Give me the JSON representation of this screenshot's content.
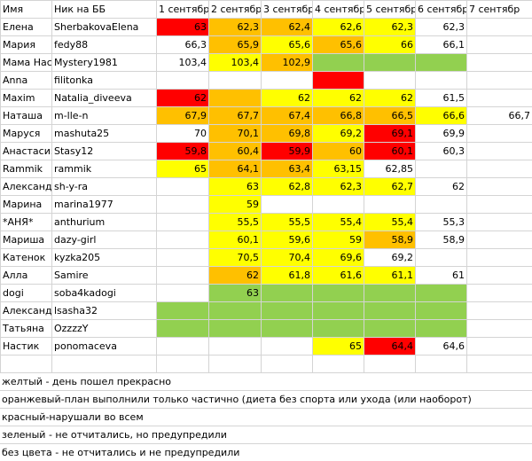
{
  "colors": {
    "yellow": "#ffff00",
    "orange": "#ffc000",
    "red": "#ff0000",
    "green": "#92d050",
    "none": "#ffffff",
    "gridline": "#d4d4d4"
  },
  "header": [
    "Имя",
    "Ник на ББ",
    "1 сентябр",
    "2 сентябр",
    "3 сентябр",
    "4 сентябр",
    "5 сентябр",
    "6 сентябр",
    "7 сентябр"
  ],
  "rows": [
    {
      "name": "Елена",
      "nick": "SherbakovaElena",
      "cells": [
        [
          "63",
          "red"
        ],
        [
          "62,3",
          "orange"
        ],
        [
          "62,4",
          "orange"
        ],
        [
          "62,6",
          "yellow"
        ],
        [
          "62,3",
          "yellow"
        ],
        [
          "62,3",
          "none"
        ],
        [
          "",
          ""
        ]
      ]
    },
    {
      "name": "Мария",
      "nick": "fedy88",
      "cells": [
        [
          "66,3",
          "none"
        ],
        [
          "65,9",
          "orange"
        ],
        [
          "65,6",
          "yellow"
        ],
        [
          "65,6",
          "orange"
        ],
        [
          "66",
          "yellow"
        ],
        [
          "66,1",
          "none"
        ],
        [
          "",
          ""
        ]
      ]
    },
    {
      "name": "Мама Нас",
      "nick": "Mystery1981",
      "cells": [
        [
          "103,4",
          "none"
        ],
        [
          "103,4",
          "yellow"
        ],
        [
          "102,9",
          "orange"
        ],
        [
          "",
          "green"
        ],
        [
          "",
          "green"
        ],
        [
          "",
          "green"
        ],
        [
          "",
          ""
        ]
      ]
    },
    {
      "name": "Anna",
      "nick": "filitonka",
      "cells": [
        [
          "",
          "none"
        ],
        [
          "",
          "none"
        ],
        [
          "",
          "none"
        ],
        [
          "",
          "red"
        ],
        [
          "",
          "none"
        ],
        [
          "",
          "none"
        ],
        [
          "",
          ""
        ]
      ]
    },
    {
      "name": "Maxim",
      "nick": "Natalia_diveeva",
      "cells": [
        [
          "62",
          "red"
        ],
        [
          "",
          "orange"
        ],
        [
          "62",
          "yellow"
        ],
        [
          "62",
          "yellow"
        ],
        [
          "62",
          "yellow"
        ],
        [
          "61,5",
          "none"
        ],
        [
          "",
          ""
        ]
      ]
    },
    {
      "name": "Наташа",
      "nick": "m-lle-n",
      "cells": [
        [
          "67,9",
          "orange"
        ],
        [
          "67,7",
          "orange"
        ],
        [
          "67,4",
          "orange"
        ],
        [
          "66,8",
          "orange"
        ],
        [
          "66,5",
          "orange"
        ],
        [
          "66,6",
          "yellow"
        ],
        [
          "66,7",
          "none"
        ]
      ]
    },
    {
      "name": "Маруся",
      "nick": "mashuta25",
      "cells": [
        [
          "70",
          "none"
        ],
        [
          "70,1",
          "orange"
        ],
        [
          "69,8",
          "orange"
        ],
        [
          "69,2",
          "yellow"
        ],
        [
          "69,1",
          "red"
        ],
        [
          "69,9",
          "none"
        ],
        [
          "",
          ""
        ]
      ]
    },
    {
      "name": "Анастасия",
      "nick": "Stasy12",
      "cells": [
        [
          "59,8",
          "red"
        ],
        [
          "60,4",
          "orange"
        ],
        [
          "59,9",
          "red"
        ],
        [
          "60",
          "orange"
        ],
        [
          "60,1",
          "red"
        ],
        [
          "60,3",
          "none"
        ],
        [
          "",
          ""
        ]
      ]
    },
    {
      "name": "Rammik",
      "nick": "rammik",
      "cells": [
        [
          "65",
          "yellow"
        ],
        [
          "64,1",
          "orange"
        ],
        [
          "63,4",
          "orange"
        ],
        [
          "63,15",
          "yellow"
        ],
        [
          "62,85",
          "none"
        ],
        [
          "",
          "none"
        ],
        [
          "",
          ""
        ]
      ]
    },
    {
      "name": "Александ",
      "nick": "sh-y-ra",
      "cells": [
        [
          "",
          "none"
        ],
        [
          "63",
          "yellow"
        ],
        [
          "62,8",
          "yellow"
        ],
        [
          "62,3",
          "yellow"
        ],
        [
          "62,7",
          "yellow"
        ],
        [
          "62",
          "none"
        ],
        [
          "",
          ""
        ]
      ]
    },
    {
      "name": "Марина",
      "nick": "marina1977",
      "cells": [
        [
          "",
          "none"
        ],
        [
          "59",
          "yellow"
        ],
        [
          "",
          "none"
        ],
        [
          "",
          "none"
        ],
        [
          "",
          "none"
        ],
        [
          "",
          "none"
        ],
        [
          "",
          ""
        ]
      ]
    },
    {
      "name": "*АНЯ*",
      "nick": "anthurium",
      "cells": [
        [
          "",
          "none"
        ],
        [
          "55,5",
          "yellow"
        ],
        [
          "55,5",
          "yellow"
        ],
        [
          "55,4",
          "yellow"
        ],
        [
          "55,4",
          "yellow"
        ],
        [
          "55,3",
          "none"
        ],
        [
          "",
          ""
        ]
      ]
    },
    {
      "name": "Мариша",
      "nick": "dazy-girl",
      "cells": [
        [
          "",
          "none"
        ],
        [
          "60,1",
          "yellow"
        ],
        [
          "59,6",
          "yellow"
        ],
        [
          "59",
          "yellow"
        ],
        [
          "58,9",
          "orange"
        ],
        [
          "58,9",
          "none"
        ],
        [
          "",
          ""
        ]
      ]
    },
    {
      "name": "Катенок",
      "nick": "kyzka205",
      "cells": [
        [
          "",
          "none"
        ],
        [
          "70,5",
          "yellow"
        ],
        [
          "70,4",
          "yellow"
        ],
        [
          "69,6",
          "yellow"
        ],
        [
          "69,2",
          "none"
        ],
        [
          "",
          "none"
        ],
        [
          "",
          ""
        ]
      ]
    },
    {
      "name": "Алла",
      "nick": "Samire",
      "cells": [
        [
          "",
          "none"
        ],
        [
          "62",
          "orange"
        ],
        [
          "61,8",
          "yellow"
        ],
        [
          "61,6",
          "yellow"
        ],
        [
          "61,1",
          "yellow"
        ],
        [
          "61",
          "none"
        ],
        [
          "",
          ""
        ]
      ]
    },
    {
      "name": "dogi",
      "nick": "soba4kadogi",
      "cells": [
        [
          "",
          "none"
        ],
        [
          "63",
          "green"
        ],
        [
          "",
          "green"
        ],
        [
          "",
          "green"
        ],
        [
          "",
          "green"
        ],
        [
          "",
          "green"
        ],
        [
          "",
          ""
        ]
      ]
    },
    {
      "name": "Александ",
      "nick": "lsasha32",
      "cells": [
        [
          "",
          "green"
        ],
        [
          "",
          "green"
        ],
        [
          "",
          "green"
        ],
        [
          "",
          "green"
        ],
        [
          "",
          "green"
        ],
        [
          "",
          "green"
        ],
        [
          "",
          ""
        ]
      ]
    },
    {
      "name": "Татьяна",
      "nick": "OzzzzY",
      "cells": [
        [
          "",
          "green"
        ],
        [
          "",
          "green"
        ],
        [
          "",
          "green"
        ],
        [
          "",
          "green"
        ],
        [
          "",
          "green"
        ],
        [
          "",
          "green"
        ],
        [
          "",
          ""
        ]
      ]
    },
    {
      "name": "Настик",
      "nick": "ponomaceva",
      "cells": [
        [
          "",
          "none"
        ],
        [
          "",
          "none"
        ],
        [
          "",
          "none"
        ],
        [
          "65",
          "yellow"
        ],
        [
          "64,4",
          "red"
        ],
        [
          "64,6",
          "none"
        ],
        [
          "",
          ""
        ]
      ]
    }
  ],
  "legend": [
    "желтый - день пошел прекрасно",
    "оранжевый-план выполнили только частично (диета без спорта или ухода (или наоборот)",
    "красный-нарушали во всем",
    "зеленый - не отчитались, но предупредили",
    "без цвета - не отчитались и не предупредили"
  ]
}
